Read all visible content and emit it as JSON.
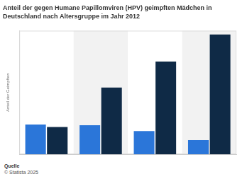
{
  "chart_data": {
    "type": "bar",
    "title": "Anteil der gegen Humane Papillomviren (HPV) geimpften Mädchen in Deutschland nach Altersgruppe im Jahr 2012",
    "y_label": "Anteil der Geimpften",
    "categories": [
      null,
      null,
      null,
      null
    ],
    "series": [
      {
        "color": "#2b76d9",
        "values": [
          24,
          23.5,
          18.7,
          11.5
        ]
      },
      {
        "color": "#0f2a46",
        "values": [
          22,
          54,
          75,
          97
        ]
      }
    ],
    "ylim": [
      0,
      100
    ],
    "grid": false,
    "tick_labels": false,
    "footer": [
      "Quelle",
      "© Statista 2025"
    ]
  }
}
